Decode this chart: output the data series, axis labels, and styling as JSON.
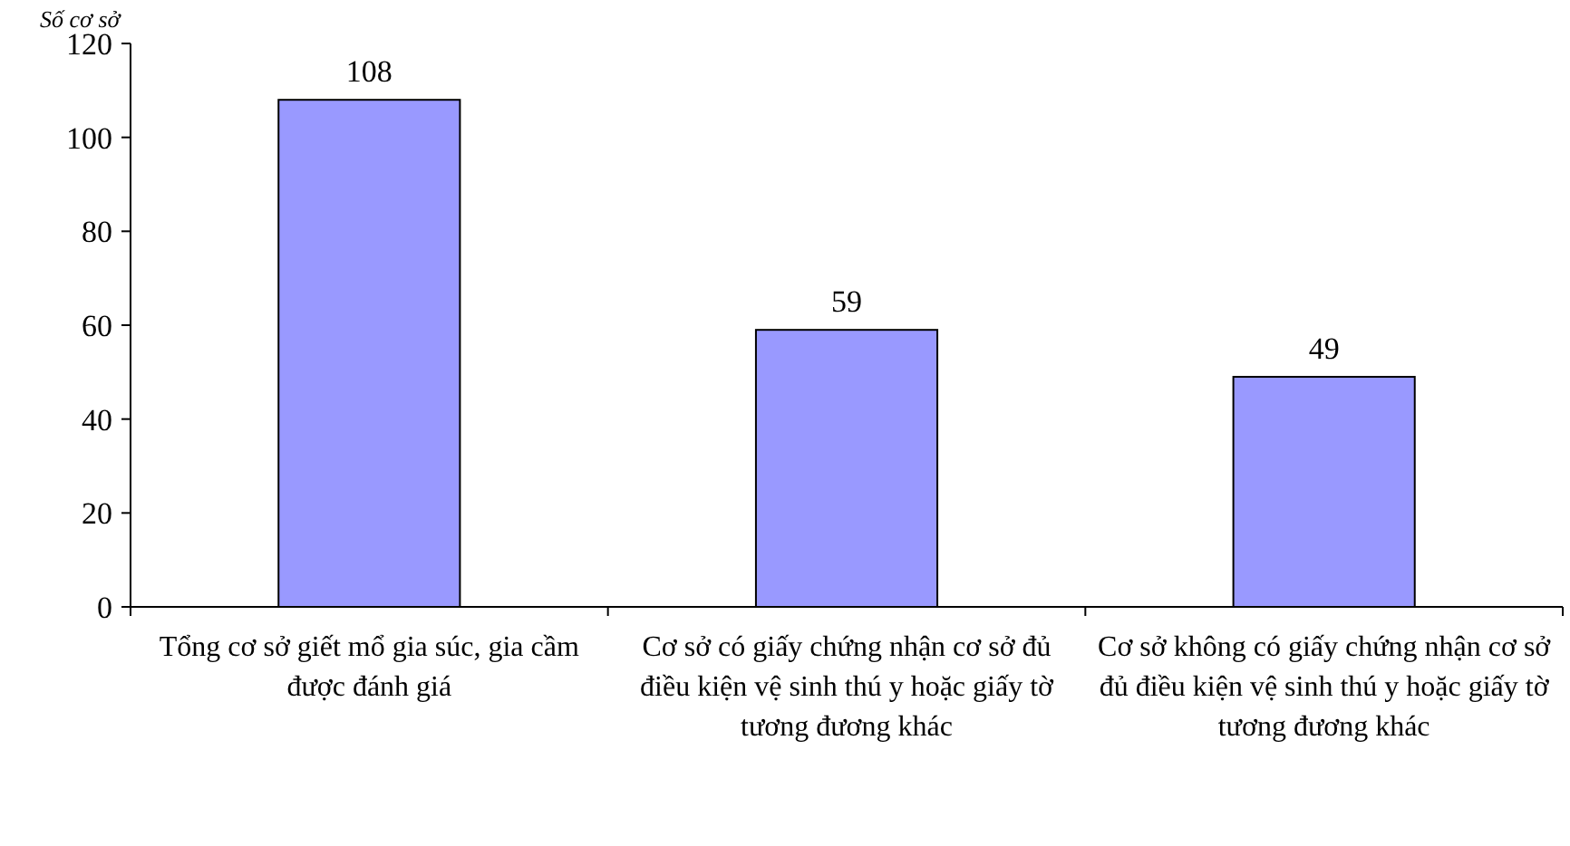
{
  "chart_data": {
    "type": "bar",
    "ylabel": "Số cơ sở",
    "categories": [
      "Tổng cơ sở giết mổ gia súc, gia cầm được đánh giá",
      "Cơ sở có giấy chứng nhận cơ sở đủ điều kiện vệ sinh thú y hoặc giấy tờ tương đương khác",
      "Cơ sở không có giấy chứng nhận cơ sở đủ điều kiện vệ sinh thú y hoặc giấy tờ tương đương khác"
    ],
    "values": [
      108,
      59,
      49
    ],
    "color": "#9999ff",
    "data_labels": true,
    "grid": false,
    "ylim": [
      0,
      120
    ],
    "yticks": [
      0,
      20,
      40,
      60,
      80,
      100,
      120
    ]
  }
}
